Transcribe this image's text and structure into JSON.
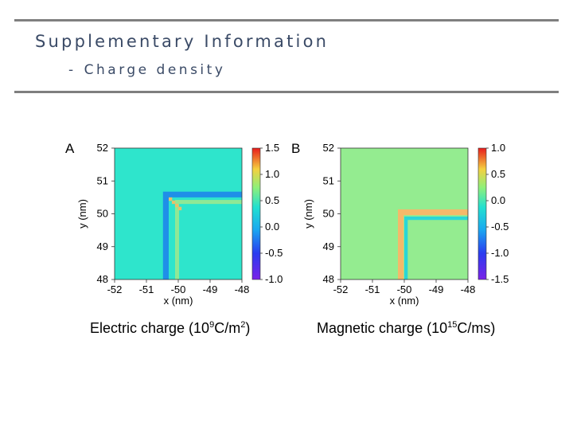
{
  "header": {
    "title": "Supplementary Information",
    "subtitle_dash": "-",
    "subtitle": "Charge density"
  },
  "chart_data": [
    {
      "type": "heatmap",
      "panel_label": "A",
      "xlabel": "x (nm)",
      "ylabel": "y (nm)",
      "xlim": [
        -52,
        -48
      ],
      "ylim": [
        48,
        52
      ],
      "x_ticks": [
        "-52",
        "-51",
        "-50",
        "-49",
        "-48"
      ],
      "y_ticks": [
        "52",
        "51",
        "50",
        "49",
        "48"
      ],
      "colorbar_range": [
        -1.0,
        1.5
      ],
      "colorbar_ticks": [
        "1.5",
        "1.0",
        "0.5",
        "0.0",
        "-0.5",
        "-1.0"
      ],
      "caption": {
        "pre": "Electric charge (10",
        "sup1": "9",
        "mid": "C/m",
        "sup2": "2",
        "post": ")"
      },
      "background_value": 0.0,
      "features": [
        {
          "type": "L-stripe",
          "corner": [
            -50.3,
            50.5
          ],
          "value": -0.5
        },
        {
          "type": "L-stripe",
          "corner": [
            -50.1,
            50.3
          ],
          "value": 0.3
        },
        {
          "type": "diagonal",
          "value": 0.8
        }
      ],
      "colors": {
        "background": "#2ee5cc",
        "negative_stripe": "#1f8fe8",
        "positive_stripe": "#8fe896",
        "diagonal": "#e8c06a"
      }
    },
    {
      "type": "heatmap",
      "panel_label": "B",
      "xlabel": "x (nm)",
      "ylabel": "y (nm)",
      "xlim": [
        -52,
        -48
      ],
      "ylim": [
        48,
        52
      ],
      "x_ticks": [
        "-52",
        "-51",
        "-50",
        "-49",
        "-48"
      ],
      "y_ticks": [
        "52",
        "51",
        "50",
        "49",
        "48"
      ],
      "colorbar_range": [
        -1.5,
        1.0
      ],
      "colorbar_ticks": [
        "1.0",
        "0.5",
        "0.0",
        "-0.5",
        "-1.0",
        "-1.5"
      ],
      "caption": {
        "pre": "Magnetic charge (10",
        "sup1": "15",
        "mid": "C/ms",
        "sup2": "",
        "post": ")"
      },
      "background_value": 0.0,
      "features": [
        {
          "type": "L-stripe",
          "corner": [
            -50.2,
            50.1
          ],
          "value": 0.35
        },
        {
          "type": "L-stripe",
          "corner": [
            -50.0,
            49.9
          ],
          "value": -0.4
        }
      ],
      "colors": {
        "background": "#94ec90",
        "positive_stripe": "#f4b96a",
        "negative_stripe": "#2ad6d6"
      }
    }
  ]
}
